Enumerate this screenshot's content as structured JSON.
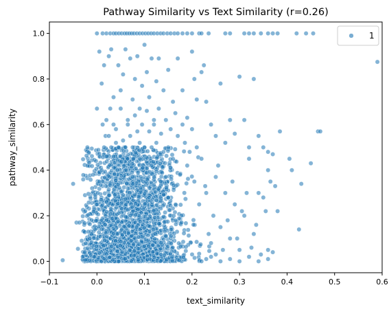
{
  "chart_data": {
    "type": "scatter",
    "title": "Pathway Similarity vs Text Similarity (r=0.26)",
    "xlabel": "text_similarity",
    "ylabel": "pathway_similarity",
    "xlim": [
      -0.1,
      0.6
    ],
    "ylim": [
      -0.05,
      1.05
    ],
    "xticks": [
      {
        "value": -0.1,
        "label": "−0.1"
      },
      {
        "value": 0.0,
        "label": "0.0"
      },
      {
        "value": 0.1,
        "label": "0.1"
      },
      {
        "value": 0.2,
        "label": "0.2"
      },
      {
        "value": 0.3,
        "label": "0.3"
      },
      {
        "value": 0.4,
        "label": "0.4"
      },
      {
        "value": 0.5,
        "label": "0.5"
      },
      {
        "value": 0.6,
        "label": "0.6"
      }
    ],
    "yticks": [
      {
        "value": 0.0,
        "label": "0.0"
      },
      {
        "value": 0.2,
        "label": "0.2"
      },
      {
        "value": 0.4,
        "label": "0.4"
      },
      {
        "value": 0.6,
        "label": "0.6"
      },
      {
        "value": 0.8,
        "label": "0.8"
      },
      {
        "value": 1.0,
        "label": "1.0"
      }
    ],
    "grid": false,
    "legend": {
      "placement": "top-right",
      "entries": [
        "1"
      ]
    },
    "series": [
      {
        "name": "1",
        "color": "#1f77b4",
        "points": [
          [
            -0.072,
            0.005
          ],
          [
            -0.05,
            0.34
          ],
          [
            -0.043,
            0.17
          ],
          [
            -0.037,
            0.17
          ],
          [
            -0.04,
            0.055
          ],
          [
            -0.032,
            0.09
          ],
          [
            -0.03,
            0.02
          ],
          [
            -0.026,
            0.04
          ],
          [
            -0.02,
            0.5
          ],
          [
            -0.018,
            0.13
          ],
          [
            -0.015,
            0.1
          ],
          [
            -0.012,
            0.06
          ],
          [
            -0.008,
            0.38
          ],
          [
            -0.006,
            0.02
          ],
          [
            -0.004,
            0.14
          ],
          [
            -0.002,
            0.44
          ],
          [
            0.0,
            0.67
          ],
          [
            0.005,
            0.92
          ],
          [
            0.01,
            0.78
          ],
          [
            0.012,
            0.6
          ],
          [
            0.015,
            0.86
          ],
          [
            0.018,
            0.55
          ],
          [
            0.02,
            0.46
          ],
          [
            0.025,
            0.9
          ],
          [
            0.028,
            0.67
          ],
          [
            0.03,
            0.93
          ],
          [
            0.035,
            0.72
          ],
          [
            0.04,
            0.58
          ],
          [
            0.045,
            0.86
          ],
          [
            0.05,
            0.75
          ],
          [
            0.055,
            0.82
          ],
          [
            0.06,
            0.93
          ],
          [
            0.065,
            0.62
          ],
          [
            0.07,
            0.89
          ],
          [
            0.075,
            0.71
          ],
          [
            0.08,
            0.8
          ],
          [
            0.085,
            0.9
          ],
          [
            0.09,
            0.67
          ],
          [
            0.095,
            0.77
          ],
          [
            0.1,
            0.95
          ],
          [
            0.105,
            0.83
          ],
          [
            0.11,
            0.72
          ],
          [
            0.115,
            0.89
          ],
          [
            0.12,
            0.62
          ],
          [
            0.125,
            0.79
          ],
          [
            0.13,
            0.89
          ],
          [
            0.14,
            0.75
          ],
          [
            0.15,
            0.84
          ],
          [
            0.16,
            0.7
          ],
          [
            0.17,
            0.89
          ],
          [
            0.18,
            0.75
          ],
          [
            0.19,
            0.63
          ],
          [
            0.2,
            0.92
          ],
          [
            0.205,
            0.8
          ],
          [
            0.21,
            0.71
          ],
          [
            0.22,
            0.83
          ],
          [
            0.225,
            0.86
          ],
          [
            0.23,
            0.7
          ],
          [
            0.24,
            0.6
          ],
          [
            0.25,
            0.55
          ],
          [
            0.26,
            0.78
          ],
          [
            0.27,
            0.52
          ],
          [
            0.28,
            0.62
          ],
          [
            0.29,
            0.56
          ],
          [
            0.3,
            0.81
          ],
          [
            0.31,
            0.62
          ],
          [
            0.32,
            0.5
          ],
          [
            0.33,
            0.8
          ],
          [
            0.34,
            0.55
          ],
          [
            0.35,
            0.5
          ],
          [
            0.36,
            0.48
          ],
          [
            0.36,
            0.4
          ],
          [
            0.37,
            0.47
          ],
          [
            0.375,
            0.33
          ],
          [
            0.38,
            0.22
          ],
          [
            0.385,
            0.57
          ],
          [
            0.405,
            0.45
          ],
          [
            0.41,
            0.4
          ],
          [
            0.425,
            0.14
          ],
          [
            0.43,
            0.34
          ],
          [
            0.45,
            0.43
          ],
          [
            0.465,
            0.57
          ],
          [
            0.47,
            0.57
          ],
          [
            0.59,
            0.875
          ],
          [
            0.25,
            0.37
          ],
          [
            0.26,
            0.15
          ],
          [
            0.27,
            0.3
          ],
          [
            0.28,
            0.1
          ],
          [
            0.29,
            0.25
          ],
          [
            0.3,
            0.05
          ],
          [
            0.31,
            0.2
          ],
          [
            0.32,
            0.45
          ],
          [
            0.33,
            0.12
          ],
          [
            0.34,
            0.3
          ],
          [
            0.345,
            0.03
          ],
          [
            0.35,
            0.28
          ],
          [
            0.36,
            0.05
          ],
          [
            0.365,
            0.35
          ],
          [
            0.37,
            0.04
          ],
          [
            0.24,
            0.08
          ],
          [
            0.245,
            0.2
          ],
          [
            0.255,
            0.42
          ],
          [
            0.265,
            0.05
          ],
          [
            0.275,
            0.18
          ],
          [
            0.285,
            0.35
          ],
          [
            0.295,
            0.1
          ],
          [
            0.305,
            0.22
          ],
          [
            0.315,
            0.3
          ],
          [
            0.325,
            0.06
          ],
          [
            0.335,
            0.16
          ],
          [
            0.355,
            0.22
          ],
          [
            0.23,
            0.3
          ],
          [
            0.235,
            0.12
          ],
          [
            0.22,
            0.45
          ],
          [
            0.21,
            0.5
          ],
          [
            0.215,
            0.25
          ],
          [
            0.205,
            0.35
          ],
          [
            0.2,
            0.58
          ],
          [
            0.195,
            0.48
          ],
          [
            0.19,
            0.42
          ],
          [
            0.185,
            0.52
          ],
          [
            0.18,
            0.6
          ],
          [
            0.175,
            0.38
          ],
          [
            0.17,
            0.55
          ],
          [
            0.165,
            0.65
          ],
          [
            0.16,
            0.45
          ],
          [
            0.155,
            0.58
          ],
          [
            0.15,
            0.5
          ],
          [
            0.145,
            0.62
          ],
          [
            0.14,
            0.48
          ],
          [
            0.135,
            0.56
          ],
          [
            0.13,
            0.67
          ],
          [
            0.125,
            0.52
          ],
          [
            0.12,
            0.6
          ],
          [
            0.115,
            0.5
          ],
          [
            0.11,
            0.57
          ],
          [
            0.105,
            0.66
          ],
          [
            0.1,
            0.5
          ],
          [
            0.095,
            0.6
          ],
          [
            0.09,
            0.52
          ],
          [
            0.085,
            0.57
          ],
          [
            0.08,
            0.64
          ],
          [
            0.075,
            0.5
          ],
          [
            0.07,
            0.55
          ],
          [
            0.065,
            0.6
          ],
          [
            0.06,
            0.5
          ],
          [
            0.055,
            0.53
          ],
          [
            0.05,
            0.67
          ],
          [
            0.045,
            0.5
          ],
          [
            0.04,
            0.52
          ],
          [
            0.035,
            0.6
          ],
          [
            0.03,
            0.5
          ],
          [
            0.025,
            0.55
          ],
          [
            0.02,
            0.62
          ],
          [
            0.015,
            0.5
          ],
          [
            0.01,
            0.4
          ],
          [
            0.005,
            0.35
          ],
          [
            0.002,
            0.3
          ],
          [
            0.0,
            0.25
          ],
          [
            0.26,
            0.0
          ],
          [
            0.28,
            0.01
          ],
          [
            0.3,
            0.0
          ],
          [
            0.32,
            0.02
          ],
          [
            0.34,
            0.0
          ],
          [
            0.36,
            0.01
          ],
          [
            0.22,
            0.0
          ],
          [
            0.24,
            0.02
          ],
          [
            0.23,
            0.01
          ],
          [
            0.25,
            0.03
          ]
        ],
        "saturated_points": [
          [
            0.0,
            1.0
          ],
          [
            0.012,
            1.0
          ],
          [
            0.02,
            1.0
          ],
          [
            0.028,
            1.0
          ],
          [
            0.035,
            1.0
          ],
          [
            0.04,
            1.0
          ],
          [
            0.046,
            1.0
          ],
          [
            0.052,
            1.0
          ],
          [
            0.058,
            1.0
          ],
          [
            0.063,
            1.0
          ],
          [
            0.068,
            1.0
          ],
          [
            0.073,
            1.0
          ],
          [
            0.078,
            1.0
          ],
          [
            0.084,
            1.0
          ],
          [
            0.09,
            1.0
          ],
          [
            0.096,
            1.0
          ],
          [
            0.102,
            1.0
          ],
          [
            0.108,
            1.0
          ],
          [
            0.114,
            1.0
          ],
          [
            0.12,
            1.0
          ],
          [
            0.127,
            1.0
          ],
          [
            0.134,
            1.0
          ],
          [
            0.14,
            1.0
          ],
          [
            0.148,
            1.0
          ],
          [
            0.155,
            1.0
          ],
          [
            0.163,
            1.0
          ],
          [
            0.17,
            1.0
          ],
          [
            0.18,
            1.0
          ],
          [
            0.19,
            1.0
          ],
          [
            0.2,
            1.0
          ],
          [
            0.215,
            1.0
          ],
          [
            0.22,
            1.0
          ],
          [
            0.235,
            1.0
          ],
          [
            0.27,
            1.0
          ],
          [
            0.28,
            1.0
          ],
          [
            0.31,
            1.0
          ],
          [
            0.32,
            1.0
          ],
          [
            0.33,
            1.0
          ],
          [
            0.345,
            1.0
          ],
          [
            0.36,
            1.0
          ],
          [
            0.37,
            1.0
          ],
          [
            0.38,
            1.0
          ],
          [
            0.42,
            1.0
          ],
          [
            0.44,
            1.0
          ],
          [
            0.455,
            1.0
          ]
        ],
        "dense_core": {
          "x_center": 0.07,
          "x_spread": 0.05,
          "y_bottom": 0.0,
          "y_top": 0.5,
          "count": 2600
        },
        "count_summary": "dense cloud concentrated at text_similarity 0.0–0.15 and pathway_similarity 0.0–0.4"
      }
    ]
  }
}
